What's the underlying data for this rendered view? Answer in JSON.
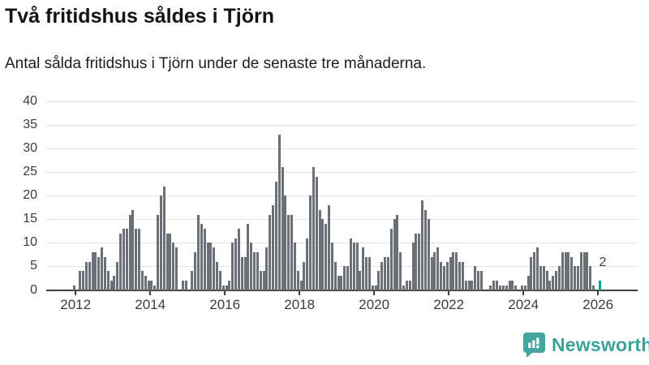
{
  "header": {
    "title": "Två fritidshus såldes i Tjörn",
    "subtitle": "Antal sålda fritidshus i Tjörn under de senaste tre månaderna."
  },
  "chart_data": {
    "type": "bar",
    "title": "Två fritidshus såldes i Tjörn",
    "subtitle": "Antal sålda fritidshus i Tjörn under de senaste tre månaderna.",
    "x_start": "2012-01",
    "x_end": "2026-02",
    "x_interval": "month",
    "values": [
      1,
      0,
      4,
      4,
      6,
      6,
      8,
      8,
      7,
      9,
      7,
      4,
      2,
      3,
      6,
      12,
      13,
      13,
      16,
      17,
      13,
      13,
      4,
      3,
      2,
      2,
      1,
      16,
      20,
      22,
      12,
      12,
      10,
      9,
      0,
      2,
      2,
      0,
      4,
      8,
      16,
      14,
      13,
      10,
      10,
      9,
      6,
      4,
      1,
      1,
      2,
      10,
      11,
      13,
      7,
      7,
      14,
      10,
      8,
      8,
      4,
      4,
      9,
      16,
      18,
      23,
      33,
      26,
      20,
      16,
      16,
      10,
      4,
      2,
      6,
      11,
      20,
      26,
      24,
      17,
      15,
      14,
      18,
      10,
      6,
      3,
      3,
      5,
      5,
      11,
      10,
      10,
      4,
      9,
      7,
      7,
      1,
      1,
      4,
      6,
      7,
      7,
      13,
      15,
      16,
      8,
      1,
      2,
      2,
      10,
      12,
      12,
      19,
      17,
      15,
      7,
      8,
      9,
      6,
      5,
      6,
      7,
      8,
      8,
      6,
      6,
      2,
      2,
      2,
      5,
      4,
      4,
      0,
      0,
      1,
      2,
      2,
      1,
      1,
      1,
      2,
      2,
      1,
      0,
      1,
      1,
      3,
      7,
      8,
      9,
      5,
      5,
      4,
      2,
      3,
      4,
      5,
      8,
      8,
      8,
      7,
      5,
      5,
      8,
      8,
      8,
      5,
      1,
      0,
      2
    ],
    "highlight": {
      "index": 169,
      "value": 2,
      "label": "2"
    },
    "bar_color": "#6b6f76",
    "highlight_color": "#0ba2a2",
    "ylim": [
      0,
      40
    ],
    "yticks": [
      0,
      5,
      10,
      15,
      20,
      25,
      30,
      35,
      40
    ],
    "xticks": [
      2012,
      2014,
      2016,
      2018,
      2020,
      2022,
      2024,
      2026
    ],
    "grid": "horizontal",
    "legend": "none"
  },
  "footer": {
    "brand": "Newsworthy",
    "brand_color": "#3ba19b",
    "brand_icon": "speech-bubble-bar-chart-icon"
  }
}
